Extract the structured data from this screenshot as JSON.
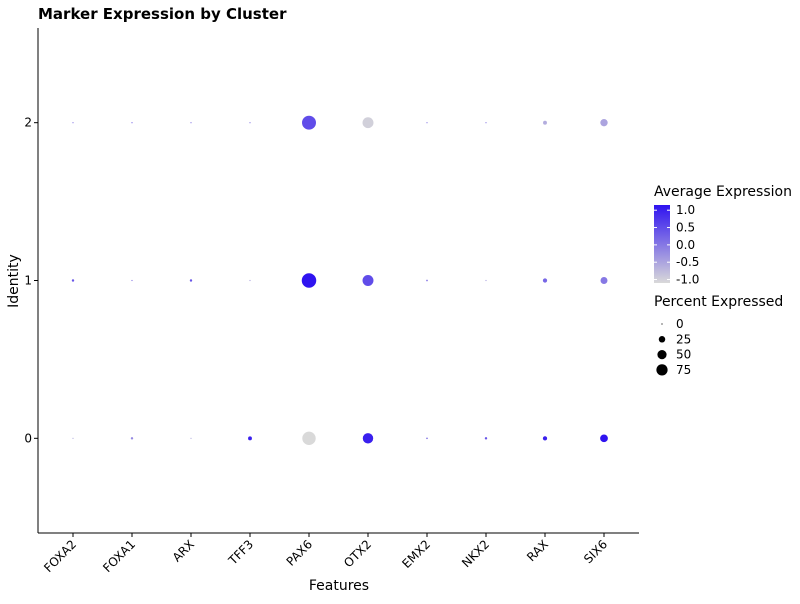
{
  "chart_data": {
    "type": "dot",
    "title": "Marker Expression by Cluster",
    "xlabel": "Features",
    "ylabel": "Identity",
    "categories": [
      "FOXA2",
      "FOXA1",
      "ARX",
      "TFF3",
      "PAX6",
      "OTX2",
      "EMX2",
      "NKX2",
      "RAX",
      "SIX6"
    ],
    "identities": [
      "0",
      "1",
      "2"
    ],
    "ylim": [
      -0.6,
      2.6
    ],
    "grid": false,
    "legend_position": "right",
    "color_legend": {
      "title": "Average Expression",
      "ticks": [
        "1.0",
        "0.5",
        "0.0",
        "-0.5",
        "-1.0"
      ],
      "min": -1.1,
      "max": 1.15,
      "low_color": "#d9d9d9",
      "high_color": "#2f13f0"
    },
    "size_legend": {
      "title": "Percent Expressed",
      "values": [
        0,
        25,
        50,
        75
      ],
      "labels": [
        "0",
        "25",
        "50",
        "75"
      ]
    },
    "rows": [
      {
        "identity": "0",
        "percent": [
          0.5,
          2,
          0.5,
          5,
          60,
          36,
          1,
          2,
          6,
          20
        ],
        "avg_exp": [
          -0.6,
          -0.2,
          -0.6,
          1.0,
          -1.1,
          1.0,
          0.0,
          0.4,
          1.0,
          1.15
        ]
      },
      {
        "identity": "1",
        "percent": [
          2,
          0.5,
          2,
          0.5,
          70,
          40,
          1,
          0.5,
          6,
          16
        ],
        "avg_exp": [
          0.4,
          0.0,
          0.4,
          -0.5,
          1.15,
          0.5,
          0.0,
          -0.5,
          0.2,
          0.0
        ]
      },
      {
        "identity": "2",
        "percent": [
          0.5,
          0.5,
          0.5,
          0.5,
          65,
          40,
          0.5,
          0.5,
          5,
          18
        ],
        "avg_exp": [
          0.0,
          0.2,
          0.0,
          0.0,
          0.5,
          -1.0,
          0.0,
          0.0,
          -0.6,
          -0.5
        ]
      }
    ]
  }
}
